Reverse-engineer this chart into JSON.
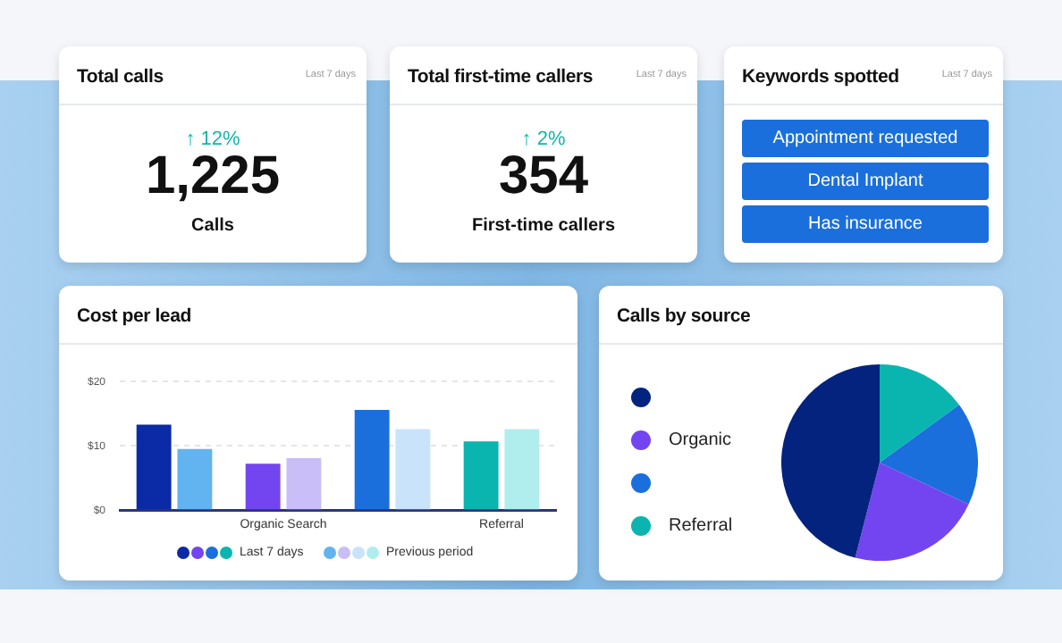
{
  "chart_data": [
    {
      "type": "other",
      "title": "Total calls",
      "subtitle": "Last 7 days",
      "annotations": [
        "↑ 12%",
        "1,225",
        "Calls"
      ]
    },
    {
      "type": "other",
      "title": "Total first-time callers",
      "subtitle": "Last 7 days",
      "annotations": [
        "↑ 2%",
        "354",
        "First-time callers"
      ]
    },
    {
      "type": "other",
      "title": "Keywords spotted",
      "subtitle": "Last 7 days",
      "annotations": [
        "Appointment requested",
        "Dental Implant",
        "Has insurance"
      ]
    },
    {
      "type": "bar",
      "title": "Cost per lead",
      "categories": [
        null,
        "Organic Search",
        null,
        "Referral"
      ],
      "series": [
        {
          "name": "Last 7 days",
          "colors": [
            "#0a2aa6",
            "#7245f0",
            "#1a6fdc",
            "#0ab5b0"
          ],
          "values": [
            13.3,
            7.2,
            15.6,
            10.7
          ]
        },
        {
          "name": "Previous period",
          "colors": [
            "#62b4f0",
            "#c9bef7",
            "#c9e3fb",
            "#b0eeee"
          ],
          "values": [
            9.5,
            8.1,
            12.6,
            12.6
          ]
        }
      ],
      "ylim": [
        0,
        20
      ],
      "yticks": [
        {
          "value": 0,
          "label": "$0"
        },
        {
          "value": 10,
          "label": "$10"
        },
        {
          "value": 20,
          "label": "$20"
        }
      ],
      "grid": "y",
      "legend": "bottom"
    },
    {
      "type": "pie",
      "title": "Calls by source",
      "categories": [
        null,
        "Organic",
        null,
        "Referral"
      ],
      "values": [
        46,
        22,
        17,
        15
      ],
      "colors": [
        "#04237e",
        "#7245f0",
        "#1a6fdc",
        "#0ab5b0"
      ],
      "legend": "left"
    }
  ]
}
